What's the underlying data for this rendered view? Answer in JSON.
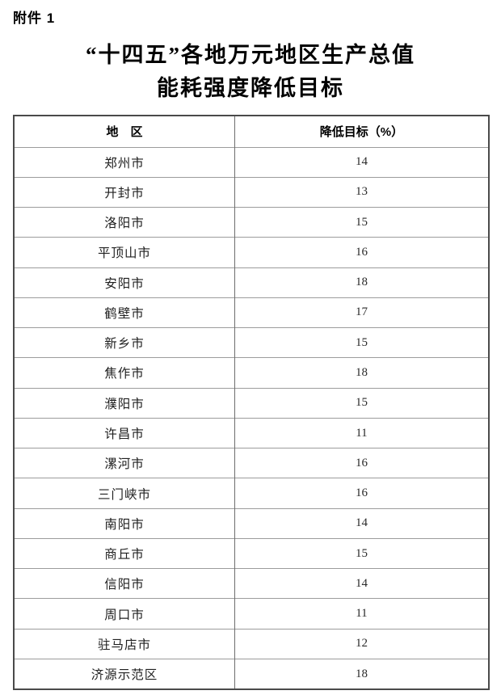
{
  "page": {
    "attachment_label": "附件 1"
  },
  "title": {
    "line1": "“十四五”各地万元地区生产总值",
    "line2": "能耗强度降低目标"
  },
  "table": {
    "headers": {
      "region": "地　区",
      "target": "降低目标（%）"
    },
    "rows": [
      {
        "region": "郑州市",
        "target": "14"
      },
      {
        "region": "开封市",
        "target": "13"
      },
      {
        "region": "洛阳市",
        "target": "15"
      },
      {
        "region": "平顶山市",
        "target": "16"
      },
      {
        "region": "安阳市",
        "target": "18"
      },
      {
        "region": "鹤壁市",
        "target": "17"
      },
      {
        "region": "新乡市",
        "target": "15"
      },
      {
        "region": "焦作市",
        "target": "18"
      },
      {
        "region": "濮阳市",
        "target": "15"
      },
      {
        "region": "许昌市",
        "target": "11"
      },
      {
        "region": "漯河市",
        "target": "16"
      },
      {
        "region": "三门峡市",
        "target": "16"
      },
      {
        "region": "南阳市",
        "target": "14"
      },
      {
        "region": "商丘市",
        "target": "15"
      },
      {
        "region": "信阳市",
        "target": "14"
      },
      {
        "region": "周口市",
        "target": "11"
      },
      {
        "region": "驻马店市",
        "target": "12"
      },
      {
        "region": "济源示范区",
        "target": "18"
      }
    ]
  }
}
